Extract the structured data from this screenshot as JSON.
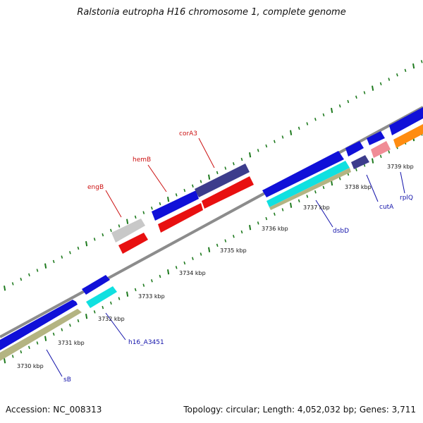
{
  "title": "Ralstonia eutropha H16 chromosome 1, complete genome",
  "footer": {
    "accession": "Accession: NC_008313",
    "topology": "Topology: circular; Length: 4,052,032 bp; Genes: 3,711"
  },
  "colors": {
    "backbone": "#8c8c8c",
    "tick": "#1e7a1e",
    "blue_gene": "#1010d8",
    "red_gene": "#e81010",
    "navy_gene": "#3c3c8c",
    "cyan_gene": "#10e0e0",
    "khaki_gene": "#b4b482",
    "gray_gene": "#c8c8c8",
    "pink_gene": "#f08c96",
    "orange_gene": "#ff8c10"
  },
  "kbp_labels": [
    "3730 kbp",
    "3731 kbp",
    "3732 kbp",
    "3733 kbp",
    "3734 kbp",
    "3735 kbp",
    "3736 kbp",
    "3737 kbp",
    "3738 kbp",
    "3739 kbp"
  ],
  "gene_labels": {
    "engB": "engB",
    "hemB": "hemB",
    "corA3": "corA3",
    "sB": "sB",
    "h16_A3451": "h16_A3451",
    "dsbD": "dsbD",
    "cutA": "cutA",
    "rplQ": "rplQ"
  }
}
